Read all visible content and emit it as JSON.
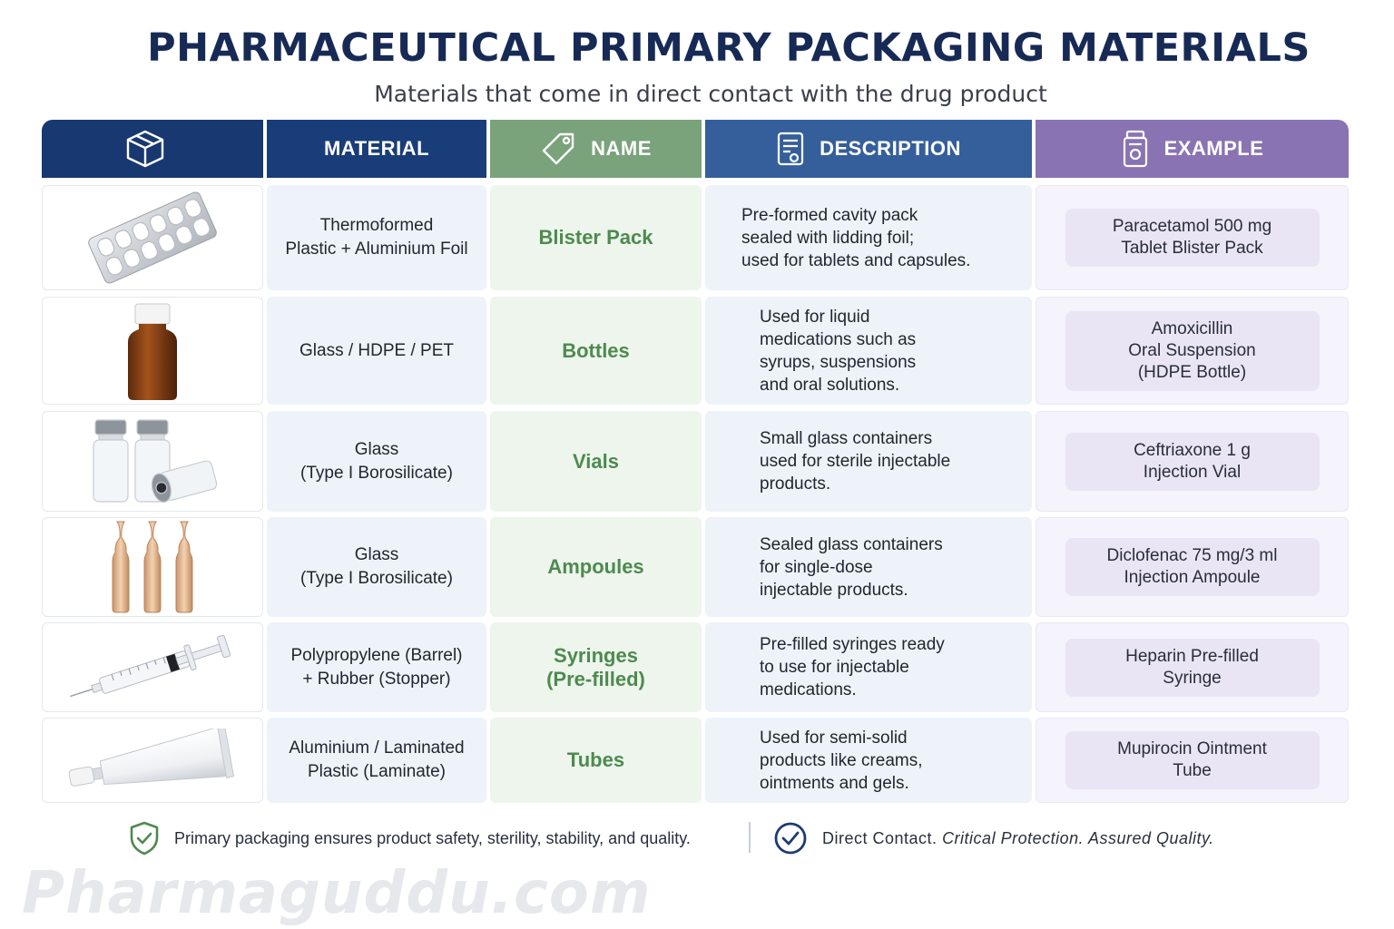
{
  "title": "PHARMACEUTICAL PRIMARY PACKAGING MATERIALS",
  "subtitle": "Materials that come in direct contact with the drug product",
  "headers": {
    "icon_column_icon": "box-icon",
    "material": "MATERIAL",
    "name": "NAME",
    "name_icon": "tag-icon",
    "description": "DESCRIPTION",
    "description_icon": "document-icon",
    "example": "EXAMPLE",
    "example_icon": "medicine-jar-icon"
  },
  "colors": {
    "title": "#172a55",
    "header_material": "#193d78",
    "header_name": "#7aa37b",
    "header_description": "#355f9a",
    "header_example": "#8a73b3",
    "name_text": "#4e8a4f"
  },
  "rows": [
    {
      "image": "blister-pack-image",
      "material": "Thermoformed\nPlastic + Aluminium Foil",
      "name": "Blister Pack",
      "description": "Pre-formed cavity pack\nsealed with lidding foil;\nused for tablets and capsules.",
      "example": "Paracetamol 500 mg\nTablet Blister Pack"
    },
    {
      "image": "bottle-image",
      "material": "Glass / HDPE / PET",
      "name": "Bottles",
      "description": "Used for liquid\nmedications such as\nsyrups, suspensions\nand oral solutions.",
      "example": "Amoxicillin\nOral Suspension\n(HDPE Bottle)"
    },
    {
      "image": "vials-image",
      "material": "Glass\n(Type I Borosilicate)",
      "name": "Vials",
      "description": "Small glass containers\nused for sterile injectable\nproducts.",
      "example": "Ceftriaxone 1 g\nInjection Vial"
    },
    {
      "image": "ampoules-image",
      "material": "Glass\n(Type I Borosilicate)",
      "name": "Ampoules",
      "description": "Sealed glass containers\nfor single-dose\ninjectable products.",
      "example": "Diclofenac 75 mg/3 ml\nInjection Ampoule"
    },
    {
      "image": "syringe-image",
      "material": "Polypropylene (Barrel)\n+ Rubber (Stopper)",
      "name": "Syringes\n(Pre-filled)",
      "description": "Pre-filled syringes ready\nto use for injectable\nmedications.",
      "example": "Heparin Pre-filled\nSyringe"
    },
    {
      "image": "tube-image",
      "material": "Aluminium / Laminated\nPlastic (Laminate)",
      "name": "Tubes",
      "description": "Used for semi-solid\nproducts like creams,\nointments and gels.",
      "example": "Mupirocin Ointment\nTube"
    }
  ],
  "footer": {
    "left_icon": "shield-check-icon",
    "left_text": "Primary packaging ensures product safety, sterility, stability, and quality.",
    "right_icon": "check-circle-icon",
    "right_lead": "Direct Contact.",
    "right_italic": "Critical Protection. Assured Quality."
  },
  "watermark": "Pharmaguddu.com"
}
